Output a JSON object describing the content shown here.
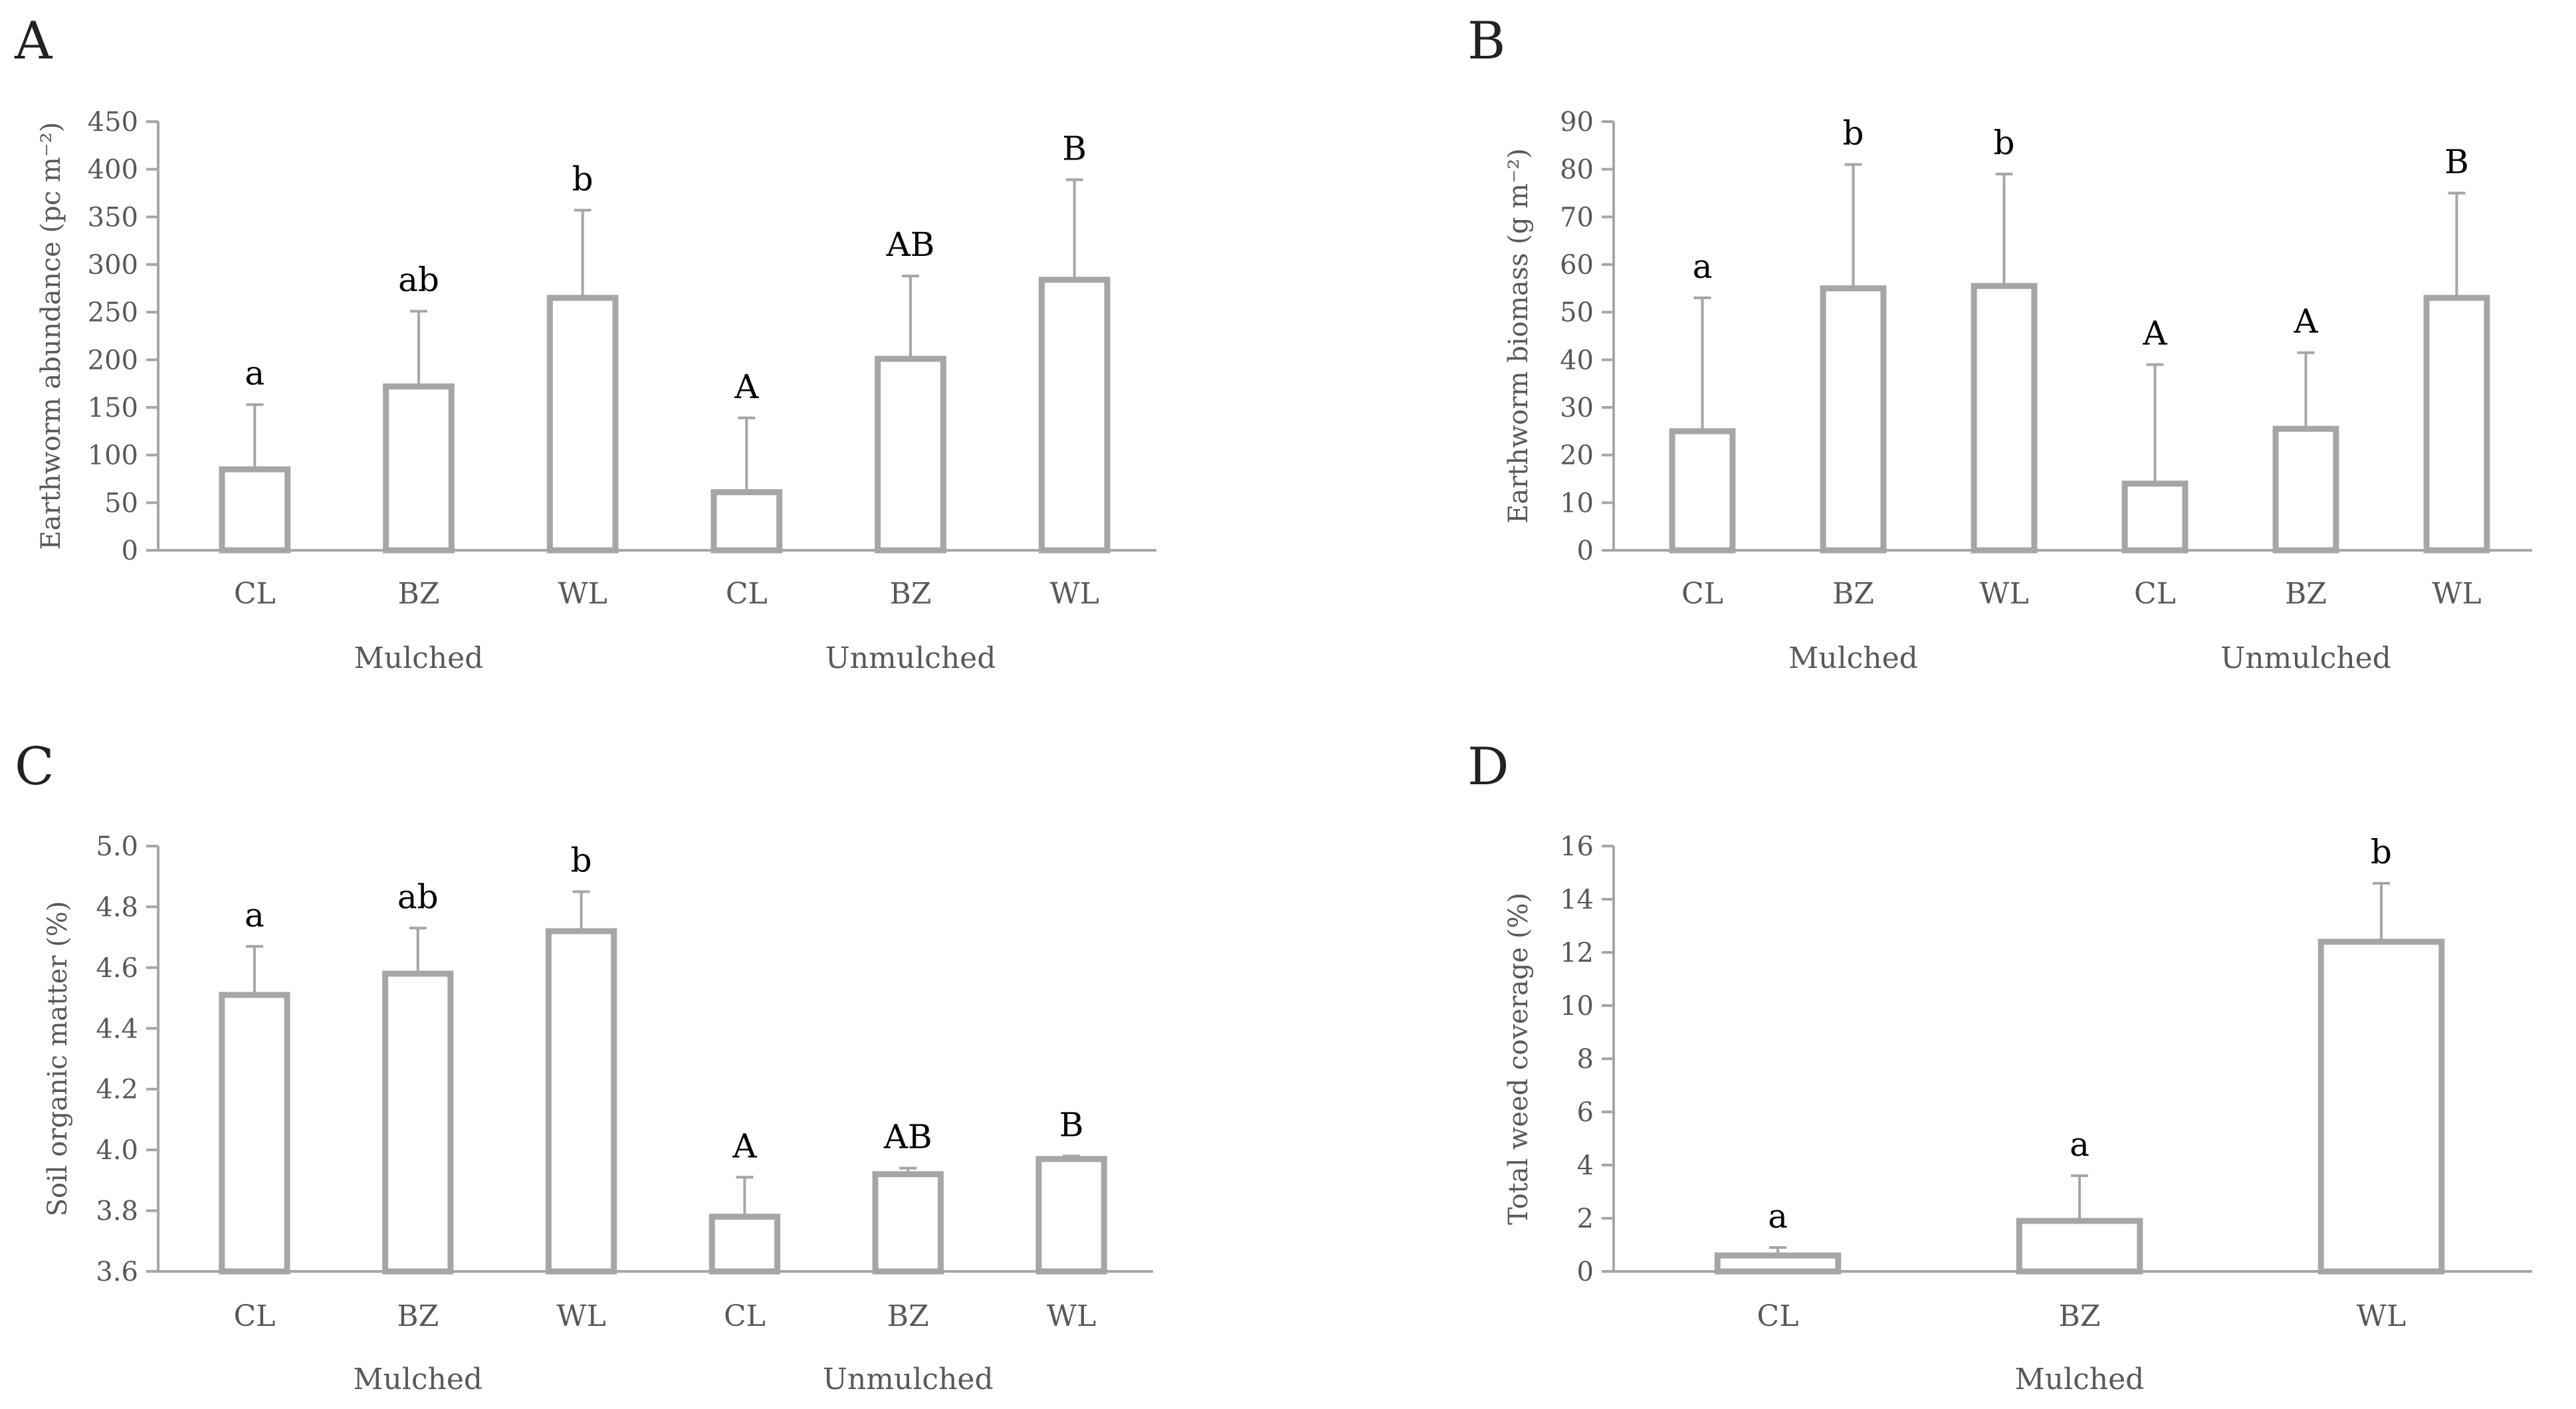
{
  "chart_data": [
    {
      "panel": "A",
      "type": "bar",
      "ylabel": "Earthworm abundance (pc m⁻²)",
      "ylim": [
        0,
        450
      ],
      "yticks": [
        0,
        50,
        100,
        150,
        200,
        250,
        300,
        350,
        400,
        450
      ],
      "ytick_labels": [
        "0",
        "50",
        "100",
        "150",
        "200",
        "250",
        "300",
        "350",
        "400",
        "450"
      ],
      "categories": [
        "CL",
        "BZ",
        "WL",
        "CL",
        "BZ",
        "WL"
      ],
      "values": [
        85,
        172,
        265,
        61,
        201,
        284
      ],
      "errors": [
        68,
        79,
        92,
        78,
        87,
        105
      ],
      "letters": [
        "a",
        "ab",
        "b",
        "A",
        "AB",
        "B"
      ],
      "groups": [
        {
          "label": "Mulched",
          "span": [
            0,
            2
          ]
        },
        {
          "label": "Unmulched",
          "span": [
            3,
            5
          ]
        }
      ]
    },
    {
      "panel": "B",
      "type": "bar",
      "ylabel": "Earthworm biomass (g m⁻²)",
      "ylim": [
        0,
        90
      ],
      "yticks": [
        0,
        10,
        20,
        30,
        40,
        50,
        60,
        70,
        80,
        90
      ],
      "ytick_labels": [
        "0",
        "10",
        "20",
        "30",
        "40",
        "50",
        "60",
        "70",
        "80",
        "90"
      ],
      "categories": [
        "CL",
        "BZ",
        "WL",
        "CL",
        "BZ",
        "WL"
      ],
      "values": [
        25,
        55,
        55.5,
        14,
        25.5,
        53
      ],
      "errors": [
        28,
        26,
        23.5,
        25,
        16,
        22
      ],
      "letters": [
        "a",
        "b",
        "b",
        "A",
        "A",
        "B"
      ],
      "groups": [
        {
          "label": "Mulched",
          "span": [
            0,
            2
          ]
        },
        {
          "label": "Unmulched",
          "span": [
            3,
            5
          ]
        }
      ]
    },
    {
      "panel": "C",
      "type": "bar",
      "ylabel": "Soil organic matter (%)",
      "ylim": [
        3.6,
        5.0
      ],
      "yticks": [
        3.6,
        3.8,
        4.0,
        4.2,
        4.4,
        4.6,
        4.8,
        5.0
      ],
      "ytick_labels": [
        "3.6",
        "3.8",
        "4.0",
        "4.2",
        "4.4",
        "4.6",
        "4.8",
        "5.0"
      ],
      "categories": [
        "CL",
        "BZ",
        "WL",
        "CL",
        "BZ",
        "WL"
      ],
      "values": [
        4.51,
        4.58,
        4.72,
        3.78,
        3.92,
        3.97
      ],
      "errors": [
        0.16,
        0.15,
        0.13,
        0.13,
        0.02,
        0.01
      ],
      "letters": [
        "a",
        "ab",
        "b",
        "A",
        "AB",
        "B"
      ],
      "groups": [
        {
          "label": "Mulched",
          "span": [
            0,
            2
          ]
        },
        {
          "label": "Unmulched",
          "span": [
            3,
            5
          ]
        }
      ]
    },
    {
      "panel": "D",
      "type": "bar",
      "ylabel": "Total weed coverage (%)",
      "ylim": [
        0,
        16
      ],
      "yticks": [
        0,
        2,
        4,
        6,
        8,
        10,
        12,
        14,
        16
      ],
      "ytick_labels": [
        "0",
        "2",
        "4",
        "6",
        "8",
        "10",
        "12",
        "14",
        "16"
      ],
      "categories": [
        "CL",
        "BZ",
        "WL"
      ],
      "values": [
        0.6,
        1.9,
        12.4
      ],
      "errors": [
        0.3,
        1.7,
        2.2
      ],
      "letters": [
        "a",
        "a",
        "b"
      ],
      "groups": [
        {
          "label": "Mulched",
          "span": [
            0,
            2
          ]
        }
      ]
    }
  ]
}
